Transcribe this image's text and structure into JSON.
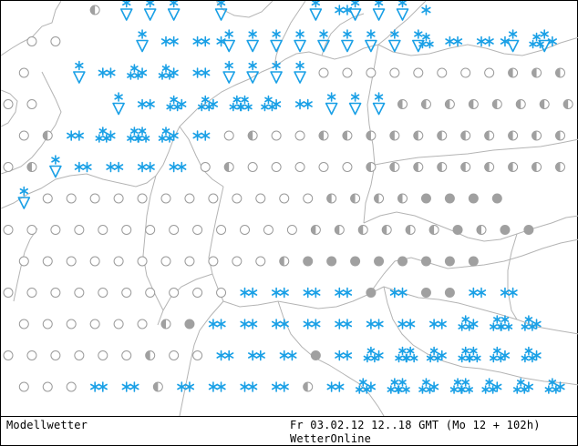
{
  "footer": {
    "model_label": "Modellwetter",
    "date_label": "Fr 03.02.12 12..18 GMT (Mo 12 + 102h)",
    "brand_label": "WetterOnline"
  },
  "colors": {
    "snow": "#1aa0e6",
    "coast": "#b4b4b4",
    "circle_outline": "#9a9a9a",
    "filled_circle": "#a0a0a0"
  },
  "legend_symbols": {
    "O": "clear (open circle)",
    "H": "partly cloudy (half circle)",
    "F": "overcast (filled circle)",
    "S": "light snow",
    "T": "snow showers",
    "V": "heavy snow showers",
    "D": "snow flurries"
  },
  "station_grid": [
    "...........H...V..V..V.....V...........V..SSV..V..V..S.",
    "...O..O..........V..SS..SS.SV..V..V..V..V..V..V..V..VT..SS..SS.SV..TVS..SS..",
    "..O......V..SS..TS..TS..SS..V..V..V..V..O..O..O..O..O..O..O..O..H..H..H..H..H",
    "O..O..........V..SS..TS..TS..TT..TS..SS..V..V..V..H..H..H..H..H..H..H..H..H..H",
    "..O..H..SS..TS..TT..TS..SS..O..H..O..O..H..H..H..H..H..H..H..H..H..H..H..H..",
    "O..H..V..SS..SS..SS..SS..O..H..O..O..O..O..O..H..H..H..H..H..H..H..H..H..H..",
    "..V..O..O..O..O..O..O..O..O..O..O..O..O..H..H..H..H..F..F..F..F..",
    "O..O..O..O..O..O..O..O..O..O..O..O..O..H..H..H..H..H..H..F..H..F..F..",
    "..O..O..O..O..O..O..O..O..O..O..O..H..F..F..F..F..F..F..F..F..",
    "O..O..O..O..O..O..O..O..O..O..SS..SS..SS..SS..F..SS..F..F..SS..SS..",
    "..O..O..O..O..O..O..H..F..SS..SS..SS..SS..SS..SS..SS..SS..TS..TT..TS..",
    "O..O..O..O..O..O..H..O..O..SS..SS..SS..F..SS..TS..TT..TS..TT..TS..TS..",
    "..O..O..O..SS..SS..H..SS..SS..SS..SS..H..SS..TS..TT..TS..TT..TS..TS..TS.."
  ]
}
